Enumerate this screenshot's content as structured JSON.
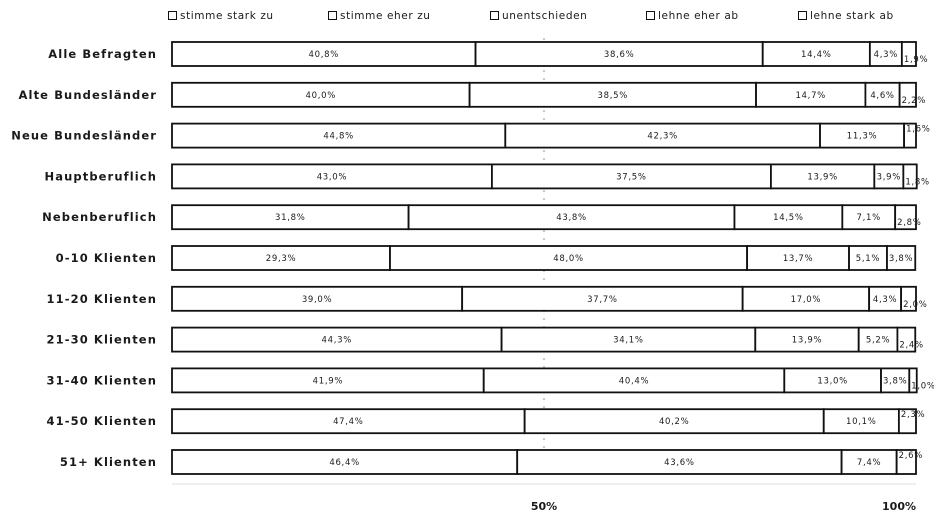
{
  "chart_data": {
    "type": "bar",
    "orientation": "horizontal",
    "stacked": true,
    "percent_scale": true,
    "categories": [
      "Alle Befragten",
      "Alte Bundesländer",
      "Neue Bundesländer",
      "Hauptberuflich",
      "Nebenberuflich",
      "0-10 Klienten",
      "11-20 Klienten",
      "21-30 Klienten",
      "31-40 Klienten",
      "41-50 Klienten",
      "51+ Klienten"
    ],
    "series": [
      {
        "name": "stimme stark zu",
        "values": [
          40.8,
          40.0,
          44.8,
          43.0,
          31.8,
          29.3,
          39.0,
          44.3,
          41.9,
          47.4,
          46.4
        ],
        "labels": [
          "40,8%",
          "40,0%",
          "44,8%",
          "43,0%",
          "31,8%",
          "29,3%",
          "39,0%",
          "44,3%",
          "41,9%",
          "47,4%",
          "46,4%"
        ]
      },
      {
        "name": "stimme eher zu",
        "values": [
          38.6,
          38.5,
          42.3,
          37.5,
          43.8,
          48.0,
          37.7,
          34.1,
          40.4,
          40.2,
          43.6
        ],
        "labels": [
          "38,6%",
          "38,5%",
          "42,3%",
          "37,5%",
          "43,8%",
          "48,0%",
          "37,7%",
          "34,1%",
          "40,4%",
          "40,2%",
          "43,6%"
        ]
      },
      {
        "name": "unentschieden",
        "values": [
          14.4,
          14.7,
          11.3,
          13.9,
          14.5,
          13.7,
          17.0,
          13.9,
          13.0,
          10.1,
          7.4
        ],
        "labels": [
          "14,4%",
          "14,7%",
          "11,3%",
          "13,9%",
          "14,5%",
          "13,7%",
          "17,0%",
          "13,9%",
          "13,0%",
          "10,1%",
          "7,4%"
        ]
      },
      {
        "name": "lehne eher ab",
        "values": [
          4.3,
          4.6,
          1.6,
          3.9,
          7.1,
          5.1,
          4.3,
          5.2,
          3.8,
          2.3,
          2.6
        ],
        "labels": [
          "4,3%",
          "4,6%",
          "1,6%",
          "3,9%",
          "7,1%",
          "5,1%",
          "4,3%",
          "5,2%",
          "3,8%",
          "2,3%",
          "2,6%"
        ]
      },
      {
        "name": "lehne stark ab",
        "values": [
          1.9,
          2.2,
          0.0,
          1.8,
          2.8,
          3.8,
          2.0,
          2.4,
          1.0,
          0.0,
          0.0
        ],
        "labels": [
          "1,9%",
          "2,2%",
          "",
          "1,8%",
          "2,8%",
          "3,8%",
          "2,0%",
          "2,4%",
          "1,0%",
          "",
          ""
        ]
      }
    ],
    "xlim": [
      0,
      100
    ],
    "x_ticks": [
      "50%",
      "100%"
    ],
    "legend_position": "top",
    "colors": {
      "bar_fill": "#ffffff",
      "bar_stroke": "#111111"
    }
  }
}
